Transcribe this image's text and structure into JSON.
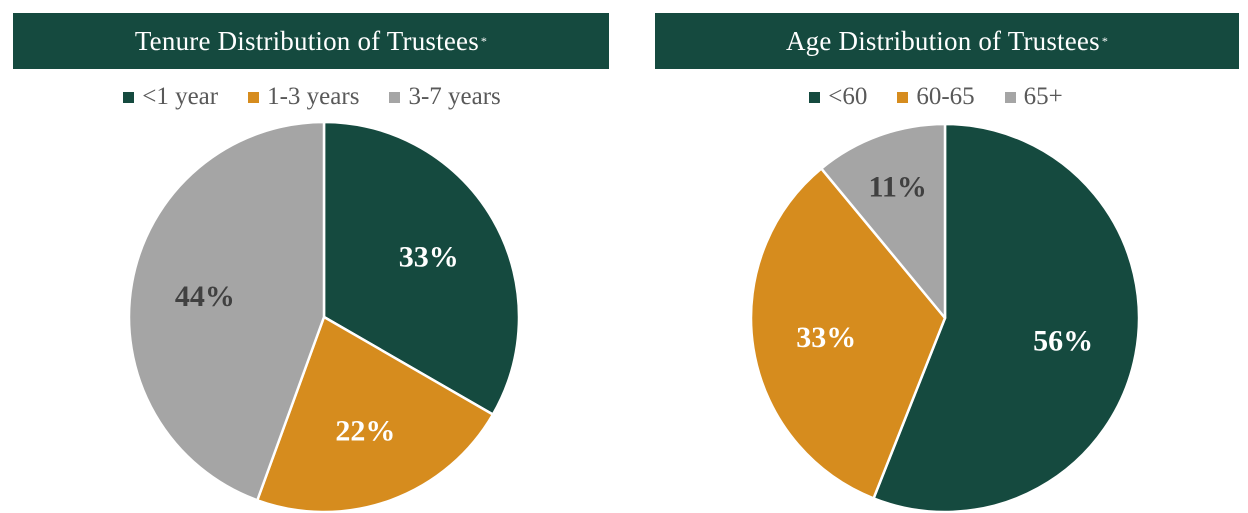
{
  "colors": {
    "title_bg": "#154a3f",
    "slice_stroke": "#ffffff"
  },
  "chart_data": [
    {
      "type": "pie",
      "title": "Tenure Distribution of Trustees",
      "title_mark": "*",
      "legend_position": "top",
      "slices": [
        {
          "label": "<1 year",
          "value": 33,
          "value_label": "33%",
          "color": "#154a3f",
          "label_color": "#ffffff"
        },
        {
          "label": "1-3 years",
          "value": 22,
          "value_label": "22%",
          "color": "#d68c1e",
          "label_color": "#ffffff"
        },
        {
          "label": "3-7 years",
          "value": 44,
          "value_label": "44%",
          "color": "#a5a5a5",
          "label_color": "#404040"
        }
      ]
    },
    {
      "type": "pie",
      "title": "Age Distribution of Trustees",
      "title_mark": "*",
      "legend_position": "top",
      "slices": [
        {
          "label": "<60",
          "value": 56,
          "value_label": "56%",
          "color": "#154a3f",
          "label_color": "#ffffff"
        },
        {
          "label": "60-65",
          "value": 33,
          "value_label": "33%",
          "color": "#d68c1e",
          "label_color": "#ffffff"
        },
        {
          "label": "65+",
          "value": 11,
          "value_label": "11%",
          "color": "#a5a5a5",
          "label_color": "#404040"
        }
      ]
    }
  ]
}
